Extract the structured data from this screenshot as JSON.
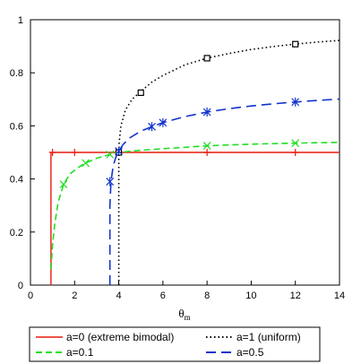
{
  "chart_data": {
    "type": "line",
    "title": "",
    "xlabel": "θ",
    "xlabel_sub": "m",
    "ylabel": "",
    "xlim": [
      0,
      14
    ],
    "ylim": [
      0,
      1
    ],
    "x_ticks": [
      0,
      2,
      4,
      6,
      8,
      10,
      12,
      14
    ],
    "y_ticks": [
      0,
      0.2,
      0.4,
      0.6,
      0.8,
      1
    ],
    "x_tick_labels": [
      "0",
      "2",
      "4",
      "6",
      "8",
      "10",
      "12",
      "14"
    ],
    "y_tick_labels": [
      "0",
      "0.2",
      "0.4",
      "0.6",
      "0.8",
      "1"
    ],
    "grid": false,
    "legend_position": "bottom",
    "series": [
      {
        "name": "a=0 (extreme bimodal)",
        "color": "#e8190e",
        "dash": "solid",
        "marker": "plus",
        "x": [
          0.93,
          0.93,
          1.0,
          2.0,
          4.0,
          8.0,
          12.0,
          14.0
        ],
        "y": [
          0.0,
          0.5,
          0.5,
          0.5,
          0.5,
          0.5,
          0.5,
          0.5
        ],
        "marker_x": [
          1.0,
          2.0,
          4.0,
          8.0,
          12.0
        ],
        "marker_y": [
          0.5,
          0.5,
          0.5,
          0.5,
          0.5
        ]
      },
      {
        "name": "a=1 (uniform)",
        "color": "#000000",
        "dash": "dot",
        "marker": "square",
        "x": [
          4.0,
          4.0,
          4.02,
          4.1,
          4.3,
          4.6,
          5.0,
          5.5,
          6.0,
          7.0,
          8.0,
          9.0,
          10.0,
          11.0,
          12.0,
          13.0,
          14.0
        ],
        "y": [
          0.0,
          0.5,
          0.54,
          0.6,
          0.66,
          0.7,
          0.73,
          0.765,
          0.79,
          0.83,
          0.855,
          0.873,
          0.888,
          0.899,
          0.908,
          0.916,
          0.922
        ],
        "marker_x": [
          4.0,
          5.0,
          8.0,
          12.0
        ],
        "marker_y": [
          0.5,
          0.725,
          0.855,
          0.908
        ]
      },
      {
        "name": "a=0.1",
        "color": "#22dd22",
        "dash": "dash",
        "marker": "x",
        "x": [
          0.93,
          1.0,
          1.1,
          1.25,
          1.5,
          1.8,
          2.2,
          2.5,
          3.0,
          3.5,
          4.0,
          5.0,
          6.0,
          8.0,
          10.0,
          12.0,
          14.0
        ],
        "y": [
          0.06,
          0.15,
          0.23,
          0.31,
          0.38,
          0.42,
          0.445,
          0.46,
          0.478,
          0.49,
          0.5,
          0.508,
          0.514,
          0.525,
          0.531,
          0.535,
          0.538
        ],
        "marker_x": [
          1.5,
          2.5,
          3.6,
          8.0,
          12.0
        ],
        "marker_y": [
          0.38,
          0.46,
          0.492,
          0.525,
          0.535
        ],
        "label_markers": true
      },
      {
        "name": "a=0.5",
        "color": "#1133cc",
        "dash": "longdash",
        "marker": "star",
        "x": [
          3.6,
          3.6,
          3.65,
          3.75,
          3.9,
          4.0,
          4.2,
          4.5,
          5.0,
          5.5,
          6.0,
          7.0,
          8.0,
          9.0,
          10.0,
          11.0,
          12.0,
          13.0,
          14.0
        ],
        "y": [
          0.0,
          0.3,
          0.39,
          0.45,
          0.49,
          0.505,
          0.53,
          0.555,
          0.58,
          0.597,
          0.612,
          0.635,
          0.652,
          0.665,
          0.675,
          0.683,
          0.69,
          0.696,
          0.701
        ],
        "marker_x": [
          3.6,
          4.0,
          5.5,
          6.0,
          8.0,
          12.0
        ],
        "marker_y": [
          0.39,
          0.505,
          0.597,
          0.612,
          0.652,
          0.69
        ]
      }
    ]
  }
}
